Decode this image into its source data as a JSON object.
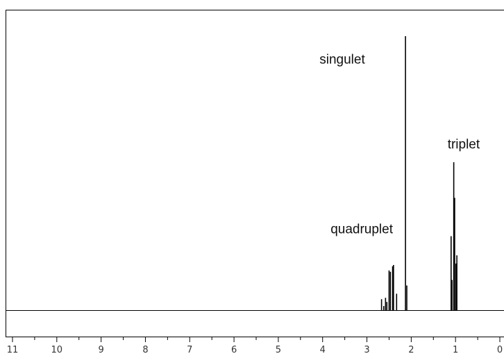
{
  "chart_data": {
    "type": "line",
    "title": "",
    "xlabel": "",
    "ylabel": "",
    "x_axis": {
      "min": 0,
      "max": 11,
      "reversed": true,
      "ticks": [
        11,
        10,
        9,
        8,
        7,
        6,
        5,
        4,
        3,
        2,
        1,
        0
      ]
    },
    "ylim": [
      0,
      1.0
    ],
    "grid": false,
    "legend": "none",
    "line_color": "#000000",
    "peaks": [
      {
        "ppm": 2.67,
        "height": 0.04
      },
      {
        "ppm": 2.62,
        "height": 0.015
      },
      {
        "ppm": 2.58,
        "height": 0.045
      },
      {
        "ppm": 2.55,
        "height": 0.03
      },
      {
        "ppm": 2.5,
        "height": 0.145
      },
      {
        "ppm": 2.47,
        "height": 0.14
      },
      {
        "ppm": 2.42,
        "height": 0.16
      },
      {
        "ppm": 2.4,
        "height": 0.165
      },
      {
        "ppm": 2.33,
        "height": 0.06
      },
      {
        "ppm": 2.13,
        "height": 1.0
      },
      {
        "ppm": 2.1,
        "height": 0.09
      },
      {
        "ppm": 1.1,
        "height": 0.27
      },
      {
        "ppm": 1.08,
        "height": 0.11
      },
      {
        "ppm": 1.04,
        "height": 0.54
      },
      {
        "ppm": 1.02,
        "height": 0.41
      },
      {
        "ppm": 0.99,
        "height": 0.17
      },
      {
        "ppm": 0.97,
        "height": 0.2
      }
    ],
    "annotations": [
      {
        "text": "singulet",
        "ppm": 4.07,
        "height": 0.9
      },
      {
        "text": "triplet",
        "ppm": 1.18,
        "height": 0.59
      },
      {
        "text": "quadruplet",
        "ppm": 3.82,
        "height": 0.28
      }
    ]
  }
}
